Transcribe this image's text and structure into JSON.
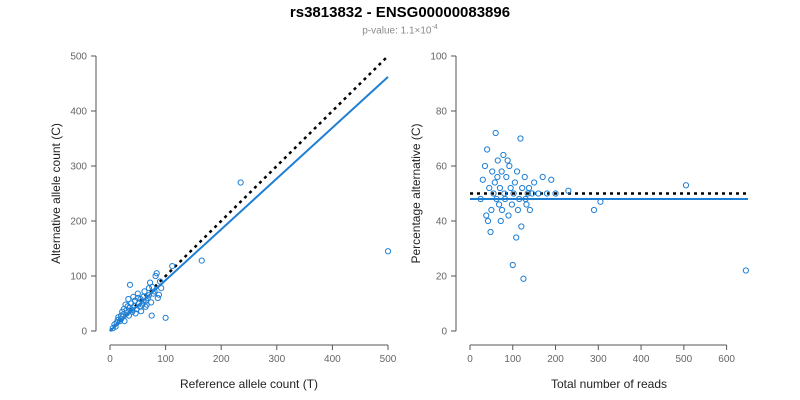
{
  "header": {
    "title": "rs3813832 - ENSG00000083896",
    "subtitle_prefix": "p-value: 1.1×10",
    "subtitle_exp": "-4"
  },
  "colors": {
    "points": "#1f7fd4",
    "fit": "#1f7fd4",
    "reference": "#000000",
    "axis": "#555555"
  },
  "chart_data": [
    {
      "type": "scatter",
      "title": "",
      "xlabel": "Reference allele count (T)",
      "ylabel": "Alternative allele count (C)",
      "xlim": [
        0,
        500
      ],
      "ylim": [
        0,
        500
      ],
      "xticks": [
        0,
        100,
        200,
        300,
        400,
        500
      ],
      "yticks": [
        0,
        100,
        200,
        300,
        400,
        500
      ],
      "reference_line": {
        "style": "dotted",
        "points": [
          [
            0,
            0
          ],
          [
            500,
            500
          ]
        ]
      },
      "fit_line": {
        "style": "solid",
        "points": [
          [
            0,
            0
          ],
          [
            500,
            462
          ]
        ]
      },
      "points": [
        [
          5,
          5
        ],
        [
          8,
          12
        ],
        [
          10,
          8
        ],
        [
          12,
          15
        ],
        [
          14,
          20
        ],
        [
          15,
          25
        ],
        [
          18,
          18
        ],
        [
          20,
          28
        ],
        [
          20,
          22
        ],
        [
          22,
          35
        ],
        [
          24,
          30
        ],
        [
          25,
          40
        ],
        [
          26,
          18
        ],
        [
          28,
          48
        ],
        [
          30,
          32
        ],
        [
          30,
          38
        ],
        [
          32,
          45
        ],
        [
          33,
          58
        ],
        [
          34,
          28
        ],
        [
          35,
          42
        ],
        [
          36,
          84
        ],
        [
          38,
          50
        ],
        [
          40,
          35
        ],
        [
          40,
          38
        ],
        [
          42,
          62
        ],
        [
          44,
          46
        ],
        [
          45,
          55
        ],
        [
          46,
          32
        ],
        [
          48,
          40
        ],
        [
          50,
          60
        ],
        [
          50,
          68
        ],
        [
          52,
          50
        ],
        [
          54,
          44
        ],
        [
          55,
          58
        ],
        [
          56,
          36
        ],
        [
          58,
          48
        ],
        [
          60,
          54
        ],
        [
          60,
          62
        ],
        [
          62,
          72
        ],
        [
          64,
          44
        ],
        [
          65,
          55
        ],
        [
          66,
          48
        ],
        [
          68,
          60
        ],
        [
          70,
          78
        ],
        [
          70,
          65
        ],
        [
          72,
          88
        ],
        [
          74,
          52
        ],
        [
          75,
          28
        ],
        [
          76,
          80
        ],
        [
          78,
          68
        ],
        [
          80,
          72
        ],
        [
          82,
          100
        ],
        [
          84,
          105
        ],
        [
          86,
          60
        ],
        [
          88,
          66
        ],
        [
          90,
          90
        ],
        [
          92,
          78
        ],
        [
          100,
          24
        ],
        [
          112,
          118
        ],
        [
          165,
          128
        ],
        [
          235,
          270
        ],
        [
          500,
          145
        ]
      ]
    },
    {
      "type": "scatter",
      "title": "",
      "xlabel": "Total number of reads",
      "ylabel": "Percentage alternative (C)",
      "xlim": [
        0,
        650
      ],
      "ylim": [
        0,
        100
      ],
      "xticks": [
        0,
        100,
        200,
        300,
        400,
        500,
        600
      ],
      "yticks": [
        0,
        20,
        40,
        60,
        80,
        100
      ],
      "reference_line": {
        "style": "dotted",
        "y": 50
      },
      "fit_line": {
        "style": "solid",
        "y": 48
      },
      "points": [
        [
          25,
          48
        ],
        [
          30,
          55
        ],
        [
          35,
          60
        ],
        [
          38,
          42
        ],
        [
          40,
          66
        ],
        [
          42,
          40
        ],
        [
          45,
          52
        ],
        [
          48,
          36
        ],
        [
          50,
          44
        ],
        [
          52,
          58
        ],
        [
          55,
          50
        ],
        [
          58,
          54
        ],
        [
          60,
          72
        ],
        [
          62,
          48
        ],
        [
          64,
          56
        ],
        [
          65,
          62
        ],
        [
          68,
          46
        ],
        [
          70,
          52
        ],
        [
          72,
          40
        ],
        [
          74,
          58
        ],
        [
          75,
          44
        ],
        [
          78,
          64
        ],
        [
          80,
          50
        ],
        [
          82,
          48
        ],
        [
          85,
          56
        ],
        [
          88,
          62
        ],
        [
          90,
          42
        ],
        [
          92,
          60
        ],
        [
          95,
          52
        ],
        [
          98,
          46
        ],
        [
          100,
          24
        ],
        [
          102,
          50
        ],
        [
          105,
          54
        ],
        [
          108,
          34
        ],
        [
          110,
          58
        ],
        [
          112,
          44
        ],
        [
          115,
          48
        ],
        [
          118,
          70
        ],
        [
          120,
          38
        ],
        [
          122,
          52
        ],
        [
          125,
          19
        ],
        [
          128,
          56
        ],
        [
          130,
          48
        ],
        [
          132,
          46
        ],
        [
          135,
          50
        ],
        [
          138,
          52
        ],
        [
          140,
          44
        ],
        [
          145,
          50
        ],
        [
          150,
          54
        ],
        [
          160,
          50
        ],
        [
          170,
          56
        ],
        [
          180,
          50
        ],
        [
          190,
          55
        ],
        [
          200,
          50
        ],
        [
          230,
          51
        ],
        [
          290,
          44
        ],
        [
          305,
          47
        ],
        [
          505,
          53
        ],
        [
          645,
          22
        ]
      ]
    }
  ]
}
